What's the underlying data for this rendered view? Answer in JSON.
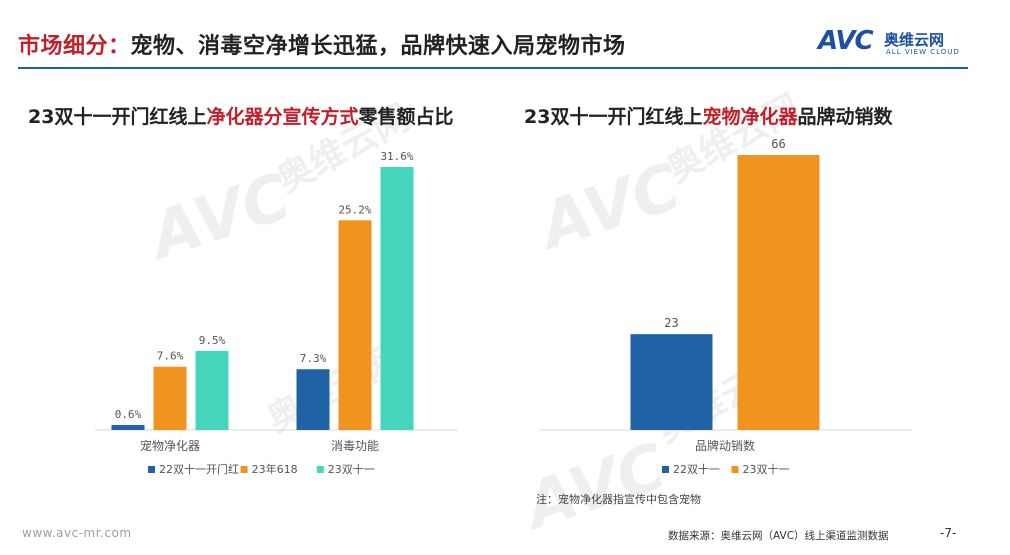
{
  "header": {
    "title_prefix": "市场细分：",
    "title_main": "宠物、消毒空净增长迅猛，品牌快速入局宠物市场",
    "logo_text": "AVC",
    "logo_cn": "奥维云网",
    "logo_en": "ALL VIEW CLOUD"
  },
  "colors": {
    "series_blue": "#1f63a6",
    "series_orange": "#f0941f",
    "series_teal": "#46d6bd",
    "accent_red": "#c0202a",
    "header_rule": "#1f5fa8"
  },
  "chart_data": [
    {
      "type": "bar",
      "title_parts": [
        "23双十一开门红线上",
        "净化器分宣传方式",
        "零售额占比"
      ],
      "categories": [
        "宠物净化器",
        "消毒功能"
      ],
      "series": [
        {
          "name": "22双十一开门红",
          "values": [
            0.6,
            7.3
          ]
        },
        {
          "name": "23年618",
          "values": [
            7.6,
            25.2
          ]
        },
        {
          "name": "23双十一",
          "values": [
            9.5,
            31.6
          ]
        }
      ],
      "value_labels": [
        [
          "0.6%",
          "7.3%"
        ],
        [
          "7.6%",
          "25.2%"
        ],
        [
          "9.5%",
          "31.6%"
        ]
      ],
      "ylim": [
        0,
        31.6
      ],
      "grid": false,
      "legend_position": "bottom"
    },
    {
      "type": "bar",
      "title_parts": [
        "23双十一开门红线上",
        "宠物净化器",
        "品牌动销数"
      ],
      "categories": [
        "品牌动销数"
      ],
      "series": [
        {
          "name": "22双十一",
          "values": [
            23
          ]
        },
        {
          "name": "23双十一",
          "values": [
            66
          ]
        }
      ],
      "value_labels": [
        [
          "23"
        ],
        [
          "66"
        ]
      ],
      "ylim": [
        0,
        66
      ],
      "grid": false,
      "legend_position": "bottom"
    }
  ],
  "note": "注：宠物净化器指宣传中包含宠物",
  "watermark": "AVC 奥维云网 ALL VIEW CLOUD",
  "footer": {
    "url": "www.avc-mr.com",
    "source": "数据来源：奥维云网（AVC）线上渠道监测数据",
    "page": "-7-"
  }
}
